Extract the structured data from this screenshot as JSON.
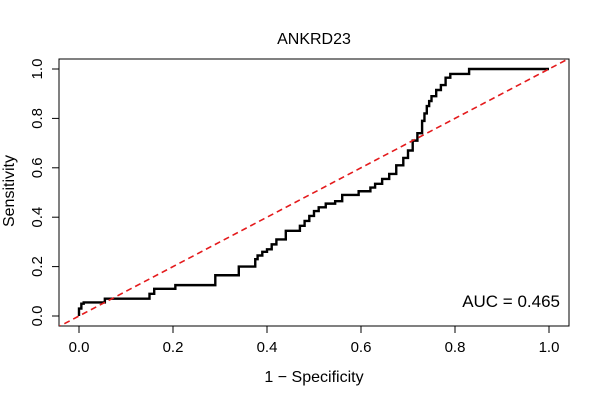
{
  "chart_data": {
    "type": "line",
    "title": "ANKRD23",
    "xlabel": "1 − Specificity",
    "ylabel": "Sensitivity",
    "xlim": [
      0,
      1
    ],
    "ylim": [
      0,
      1
    ],
    "x_ticks": [
      0.0,
      0.2,
      0.4,
      0.6,
      0.8,
      1.0
    ],
    "x_tick_labels": [
      "0.0",
      "0.2",
      "0.4",
      "0.6",
      "0.8",
      "1.0"
    ],
    "y_ticks": [
      0.0,
      0.2,
      0.4,
      0.6,
      0.8,
      1.0
    ],
    "y_tick_labels": [
      "0.0",
      "0.2",
      "0.4",
      "0.6",
      "0.8",
      "1.0"
    ],
    "grid": false,
    "annotation": "AUC = 0.465",
    "series": [
      {
        "name": "ROC curve",
        "color": "#000000",
        "style": "step",
        "x": [
          0.0,
          0.0,
          0.005,
          0.005,
          0.01,
          0.01,
          0.055,
          0.055,
          0.15,
          0.15,
          0.16,
          0.16,
          0.205,
          0.205,
          0.29,
          0.29,
          0.34,
          0.34,
          0.375,
          0.375,
          0.38,
          0.38,
          0.39,
          0.39,
          0.4,
          0.4,
          0.41,
          0.41,
          0.42,
          0.42,
          0.44,
          0.44,
          0.47,
          0.47,
          0.48,
          0.48,
          0.49,
          0.49,
          0.5,
          0.5,
          0.51,
          0.51,
          0.525,
          0.525,
          0.545,
          0.545,
          0.56,
          0.56,
          0.595,
          0.595,
          0.62,
          0.62,
          0.63,
          0.63,
          0.645,
          0.645,
          0.66,
          0.66,
          0.675,
          0.675,
          0.69,
          0.69,
          0.7,
          0.7,
          0.71,
          0.71,
          0.72,
          0.72,
          0.73,
          0.73,
          0.735,
          0.735,
          0.74,
          0.74,
          0.745,
          0.745,
          0.75,
          0.75,
          0.76,
          0.76,
          0.77,
          0.77,
          0.78,
          0.78,
          0.79,
          0.79,
          0.83,
          0.83,
          1.0
        ],
        "y": [
          0.0,
          0.03,
          0.03,
          0.05,
          0.05,
          0.055,
          0.055,
          0.07,
          0.07,
          0.09,
          0.09,
          0.11,
          0.11,
          0.125,
          0.125,
          0.165,
          0.165,
          0.2,
          0.2,
          0.23,
          0.23,
          0.245,
          0.245,
          0.26,
          0.26,
          0.27,
          0.27,
          0.29,
          0.29,
          0.31,
          0.31,
          0.345,
          0.345,
          0.365,
          0.365,
          0.385,
          0.385,
          0.405,
          0.405,
          0.425,
          0.425,
          0.44,
          0.44,
          0.455,
          0.455,
          0.465,
          0.465,
          0.49,
          0.49,
          0.505,
          0.505,
          0.52,
          0.52,
          0.535,
          0.535,
          0.555,
          0.555,
          0.575,
          0.575,
          0.61,
          0.61,
          0.64,
          0.64,
          0.67,
          0.67,
          0.71,
          0.71,
          0.74,
          0.74,
          0.79,
          0.79,
          0.82,
          0.82,
          0.85,
          0.85,
          0.87,
          0.87,
          0.89,
          0.89,
          0.915,
          0.915,
          0.935,
          0.935,
          0.965,
          0.965,
          0.98,
          0.98,
          1.0,
          1.0
        ]
      },
      {
        "name": "Reference",
        "color": "#e41a1c",
        "style": "dashed",
        "x": [
          0.0,
          1.0
        ],
        "y": [
          0.0,
          1.0
        ]
      }
    ]
  }
}
